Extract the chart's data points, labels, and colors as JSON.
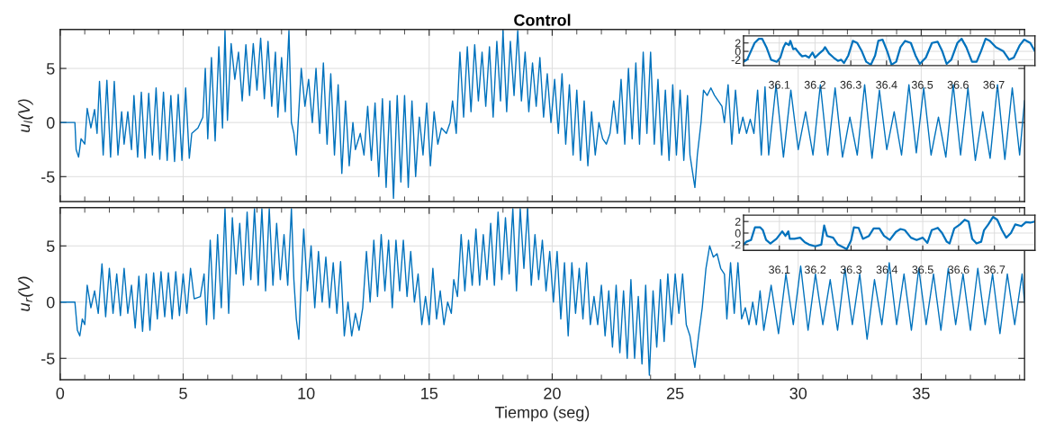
{
  "chart_data": [
    {
      "type": "line",
      "title": "Control",
      "ylabel": "u$_{l}$(V)",
      "grid": true,
      "tick_labels": "y",
      "xlim": [
        0,
        39.2
      ],
      "ylim": [
        -7.3,
        8.6
      ],
      "xticks": [
        0,
        5,
        10,
        15,
        20,
        25,
        30,
        35
      ],
      "yticks": [
        -5,
        0,
        5
      ],
      "series": [
        {
          "color": "#0072bd",
          "x": [
            0,
            0.6,
            0.65,
            0.75,
            0.85,
            1.0,
            1.1,
            1.25,
            1.4,
            1.5,
            1.6,
            1.75,
            1.9,
            2.05,
            2.2,
            2.35,
            2.5,
            2.6,
            2.75,
            2.9,
            3.0,
            3.15,
            3.3,
            3.45,
            3.6,
            3.75,
            3.9,
            4.05,
            4.2,
            4.35,
            4.5,
            4.65,
            4.8,
            4.95,
            5.1,
            5.25,
            5.35,
            5.6,
            5.8,
            5.9,
            6.0,
            6.15,
            6.3,
            6.45,
            6.6,
            6.7,
            6.8,
            6.95,
            7.1,
            7.25,
            7.4,
            7.55,
            7.7,
            7.85,
            8.0,
            8.15,
            8.3,
            8.45,
            8.6,
            8.75,
            8.85,
            9.0,
            9.15,
            9.3,
            9.4,
            9.5,
            9.6,
            9.7,
            9.8,
            9.95,
            10.1,
            10.25,
            10.4,
            10.55,
            10.7,
            10.85,
            11.0,
            11.15,
            11.3,
            11.45,
            11.6,
            11.75,
            11.9,
            12.0,
            12.2,
            12.35,
            12.5,
            12.65,
            12.8,
            12.95,
            13.1,
            13.25,
            13.4,
            13.55,
            13.7,
            13.85,
            14.0,
            14.15,
            14.3,
            14.45,
            14.6,
            14.75,
            14.9,
            15.05,
            15.2,
            15.35,
            15.5,
            15.7,
            15.85,
            15.95,
            16.1,
            16.25,
            16.4,
            16.55,
            16.7,
            16.85,
            17.0,
            17.15,
            17.3,
            17.45,
            17.6,
            17.75,
            17.9,
            18.0,
            18.15,
            18.3,
            18.45,
            18.6,
            18.75,
            18.9,
            19.05,
            19.2,
            19.35,
            19.5,
            19.65,
            19.8,
            19.95,
            20.1,
            20.25,
            20.4,
            20.55,
            20.7,
            20.85,
            21.0,
            21.15,
            21.3,
            21.45,
            21.6,
            21.75,
            21.9,
            22.05,
            22.2,
            22.35,
            22.5,
            22.65,
            22.8,
            22.95,
            23.1,
            23.25,
            23.4,
            23.55,
            23.7,
            23.85,
            24.0,
            24.15,
            24.3,
            24.45,
            24.6,
            24.75,
            24.9,
            25.05,
            25.2,
            25.35,
            25.5,
            25.6,
            25.7,
            25.8,
            25.9,
            26.05,
            26.15,
            26.3,
            26.45,
            26.6,
            26.75,
            26.9,
            27.0,
            27.15,
            27.3,
            27.45,
            27.6,
            27.75,
            27.9,
            28.05,
            28.2,
            28.35,
            28.5,
            28.65,
            28.8,
            29.1,
            29.4,
            29.7,
            30.0,
            30.3,
            30.6,
            30.9,
            31.2,
            31.5,
            31.8,
            32.1,
            32.4,
            32.7,
            33.0,
            33.3,
            33.6,
            33.9,
            34.2,
            34.5,
            34.8,
            35.1,
            35.4,
            35.7,
            36.0,
            36.3,
            36.6,
            36.9,
            37.2,
            37.5,
            37.8,
            38.1,
            38.4,
            38.7,
            39.0,
            39.2
          ],
          "values": [
            0,
            0,
            -2.5,
            -3.2,
            -1.5,
            -2,
            1.3,
            -0.5,
            1.2,
            -1,
            3.8,
            -3,
            3.9,
            -3.2,
            3.8,
            -3,
            1,
            -2,
            1,
            -2.5,
            2.5,
            -3.2,
            2.8,
            -3.3,
            2.7,
            -3,
            3.2,
            -3.4,
            2.8,
            -3.5,
            2.5,
            -3.6,
            2.6,
            -3.5,
            3.2,
            -3.3,
            -1,
            -0.5,
            0.5,
            5,
            -1.5,
            6,
            -1.7,
            7,
            -0.5,
            8.5,
            0.2,
            7.3,
            4,
            6.5,
            2,
            7.2,
            2.5,
            7.3,
            3,
            7.8,
            2.2,
            7.5,
            1.5,
            6.5,
            0.5,
            6,
            1,
            8.5,
            0,
            -1,
            -3,
            1,
            5,
            1.5,
            4,
            0,
            5,
            -1,
            5.5,
            -2,
            4.5,
            -3,
            3.5,
            -4.7,
            2,
            -4,
            0,
            -2.5,
            -1,
            -3,
            1.5,
            -3.5,
            1.8,
            -5,
            2.2,
            -6,
            2,
            -7,
            2.5,
            -5.5,
            2.5,
            -6,
            2,
            -5,
            0.5,
            -3,
            1.8,
            -4,
            1,
            -2,
            -0.5,
            -1,
            0,
            2,
            -1,
            6.5,
            0.5,
            7,
            1,
            7.2,
            2,
            6.5,
            1.5,
            7,
            0.5,
            7.5,
            2,
            8.5,
            1,
            7.5,
            2.5,
            8.5,
            2,
            6.5,
            1,
            5.5,
            1.5,
            6,
            0.5,
            4.5,
            0,
            4,
            -1,
            4.5,
            -2,
            3.5,
            -3,
            3,
            -3.5,
            2,
            -4,
            1,
            -3,
            0,
            -1.5,
            -2,
            -1,
            2,
            -1,
            4,
            -2,
            5,
            -1.5,
            5.5,
            -2,
            6.5,
            -1,
            6.5,
            -2,
            4,
            -3,
            3,
            -3.5,
            3.5,
            -3,
            3,
            -3.5,
            2.5,
            -3,
            -4.5,
            -6,
            -3,
            0,
            3,
            2.5,
            3.2,
            2.5,
            2,
            1.5,
            0,
            3.5,
            -2,
            3,
            -1,
            0.5,
            -1,
            0.3,
            -1,
            3,
            -3,
            3.3,
            -3,
            3.5,
            -3.2,
            3,
            -2.5,
            1,
            -3,
            3.5,
            -3,
            3.2,
            -3.2,
            0.5,
            -3,
            3.5,
            -3.3,
            3,
            -2.5,
            1,
            -3,
            3.5,
            -2.8,
            3.2,
            -3,
            0.5,
            -3.2,
            3.5,
            -3,
            3.2,
            -3.5,
            1,
            -3.3,
            3.5,
            -3.4,
            3.2,
            -3,
            2
          ]
        }
      ]
    },
    {
      "type": "line",
      "grid": true,
      "xlim": [
        36.0,
        36.815
      ],
      "ylim": [
        -3.4,
        3.7
      ],
      "xticks": [
        36.1,
        36.2,
        36.3,
        36.4,
        36.5,
        36.6,
        36.7
      ],
      "yticks": [
        -2,
        0,
        2
      ],
      "series": [
        {
          "color": "#0072bd",
          "x": [
            36.0,
            36.01,
            36.031,
            36.043,
            36.052,
            36.064,
            36.077,
            36.093,
            36.103,
            36.112,
            36.118,
            36.127,
            36.131,
            36.139,
            36.145,
            36.156,
            36.164,
            36.173,
            36.183,
            36.193,
            36.2,
            36.212,
            36.223,
            36.228,
            36.239,
            36.252,
            36.264,
            36.273,
            36.281,
            36.293,
            36.306,
            36.318,
            36.331,
            36.343,
            36.356,
            36.368,
            36.377,
            36.389,
            36.402,
            36.414,
            36.427,
            36.439,
            36.452,
            36.468,
            36.481,
            36.493,
            36.51,
            36.527,
            36.543,
            36.556,
            36.568,
            36.581,
            36.598,
            36.61,
            36.623,
            36.639,
            36.652,
            36.664,
            36.677,
            36.689,
            36.706,
            36.727,
            36.743,
            36.756,
            36.773,
            36.785,
            36.802,
            36.815
          ],
          "values": [
            -2.5,
            -2,
            2,
            3,
            3,
            1,
            -2,
            -2.5,
            -1.5,
            1,
            2,
            1.5,
            2.5,
            0.5,
            0.7,
            -0.5,
            -1.2,
            -1,
            -1.5,
            -0.3,
            -1.5,
            -0.5,
            0.3,
            1,
            -0.5,
            -1.5,
            -2.3,
            -2,
            -2.8,
            -1,
            2.5,
            2,
            0,
            -2.5,
            -3.2,
            -1,
            2.5,
            2.8,
            0,
            -3.2,
            -2.5,
            1,
            2.5,
            2,
            -1,
            -3,
            -1.5,
            2,
            2.3,
            0,
            -3,
            -2,
            2,
            3,
            1,
            -2.5,
            -2.5,
            0,
            3,
            2.5,
            1,
            0,
            -2,
            -1.5,
            1.5,
            2.8,
            2,
            0
          ]
        }
      ]
    },
    {
      "type": "line",
      "ylabel": "u$_{r}$(V)",
      "xlabel": "Tiempo (seg)",
      "grid": true,
      "xlim": [
        0,
        39.2
      ],
      "ylim": [
        -6.9,
        8.4
      ],
      "xticks": [
        0,
        5,
        10,
        15,
        20,
        25,
        30,
        35
      ],
      "yticks": [
        -5,
        0,
        5
      ],
      "series": [
        {
          "color": "#0072bd",
          "x": [
            0,
            0.6,
            0.7,
            0.8,
            0.9,
            1.0,
            1.1,
            1.25,
            1.4,
            1.55,
            1.7,
            1.85,
            2.0,
            2.15,
            2.3,
            2.45,
            2.6,
            2.75,
            2.9,
            3.05,
            3.2,
            3.35,
            3.5,
            3.65,
            3.8,
            3.95,
            4.1,
            4.25,
            4.4,
            4.55,
            4.7,
            4.85,
            5.0,
            5.15,
            5.3,
            5.45,
            5.7,
            5.85,
            5.95,
            6.1,
            6.25,
            6.4,
            6.55,
            6.7,
            6.85,
            7.0,
            7.15,
            7.3,
            7.45,
            7.6,
            7.75,
            7.9,
            8.05,
            8.2,
            8.35,
            8.5,
            8.65,
            8.8,
            8.95,
            9.1,
            9.25,
            9.4,
            9.5,
            9.6,
            9.7,
            9.8,
            9.9,
            10.05,
            10.2,
            10.35,
            10.5,
            10.65,
            10.8,
            10.95,
            11.1,
            11.25,
            11.4,
            11.55,
            11.7,
            11.85,
            12.0,
            12.15,
            12.3,
            12.45,
            12.6,
            12.75,
            12.9,
            13.05,
            13.2,
            13.35,
            13.5,
            13.65,
            13.8,
            13.95,
            14.1,
            14.25,
            14.4,
            14.55,
            14.7,
            14.85,
            15.0,
            15.15,
            15.3,
            15.45,
            15.6,
            15.75,
            15.9,
            16.0,
            16.15,
            16.3,
            16.45,
            16.6,
            16.75,
            16.9,
            17.05,
            17.2,
            17.35,
            17.5,
            17.65,
            17.8,
            17.95,
            18.1,
            18.25,
            18.4,
            18.55,
            18.7,
            18.85,
            19.0,
            19.15,
            19.3,
            19.45,
            19.6,
            19.75,
            19.9,
            20.05,
            20.2,
            20.35,
            20.5,
            20.65,
            20.8,
            20.95,
            21.1,
            21.25,
            21.4,
            21.55,
            21.7,
            21.85,
            22.0,
            22.15,
            22.3,
            22.45,
            22.6,
            22.75,
            22.9,
            23.05,
            23.2,
            23.35,
            23.5,
            23.65,
            23.8,
            23.95,
            24.1,
            24.25,
            24.4,
            24.55,
            24.7,
            24.85,
            25.0,
            25.15,
            25.3,
            25.45,
            25.6,
            25.7,
            25.8,
            25.95,
            26.1,
            26.25,
            26.4,
            26.55,
            26.7,
            26.85,
            27.0,
            27.1,
            27.25,
            27.4,
            27.55,
            27.7,
            27.85,
            28.0,
            28.15,
            28.3,
            28.45,
            28.6,
            28.9,
            29.2,
            29.5,
            29.8,
            30.1,
            30.4,
            30.7,
            31.0,
            31.3,
            31.6,
            31.9,
            32.2,
            32.5,
            32.8,
            33.1,
            33.4,
            33.7,
            34.0,
            34.3,
            34.6,
            34.9,
            35.2,
            35.5,
            35.8,
            36.1,
            36.4,
            36.7,
            37.0,
            37.3,
            37.6,
            37.9,
            38.2,
            38.5,
            38.8,
            39.1,
            39.2
          ],
          "values": [
            0,
            0,
            -2.5,
            -3,
            -1.5,
            -2,
            1.5,
            -0.5,
            1,
            -1,
            3.4,
            -1.3,
            3,
            -1,
            2.5,
            -1.2,
            3,
            -1,
            1.5,
            -2.3,
            2.3,
            -2.6,
            2.5,
            -2.5,
            2.6,
            -1.5,
            2.7,
            -1.3,
            2.6,
            -1.5,
            2.7,
            -1.2,
            2.5,
            -1,
            3,
            0.3,
            0.5,
            2.5,
            -2,
            5.5,
            -1.5,
            6,
            -0.5,
            8.3,
            -1,
            7.5,
            2.5,
            7,
            1.5,
            8,
            2,
            8.3,
            1.5,
            8.3,
            1,
            8.3,
            1.5,
            7,
            2,
            6,
            1.5,
            8.3,
            2,
            -1.5,
            -3.3,
            2,
            6.5,
            1,
            5,
            -0.5,
            4.5,
            0,
            4,
            -0.5,
            3.5,
            -1,
            3.6,
            -3,
            0,
            -3,
            -1,
            -2.5,
            -0.5,
            4.5,
            0,
            5.5,
            0.5,
            6,
            1,
            5.5,
            -0.5,
            5.5,
            1,
            5.5,
            0.5,
            4.5,
            0,
            2.5,
            -2,
            0.5,
            -2,
            3,
            -1.5,
            1,
            -2,
            0,
            -1,
            2,
            0.5,
            6,
            1,
            5.5,
            1.5,
            6.5,
            1.5,
            6,
            2,
            7,
            1.5,
            8,
            2,
            7.5,
            2.5,
            8.3,
            1,
            8.3,
            3,
            8.3,
            1.5,
            6,
            2,
            5.5,
            1,
            4.5,
            0,
            4.5,
            -1.5,
            3.5,
            -3,
            3.5,
            -1,
            3,
            -1.5,
            3.5,
            -2,
            0.5,
            -2,
            1.5,
            -3,
            1,
            -4,
            1.5,
            -4.5,
            1,
            -5,
            2,
            -5,
            0.5,
            -5.5,
            1.5,
            -6.5,
            1,
            -4,
            2,
            -3.5,
            2.5,
            -2,
            2.5,
            -1,
            2.5,
            -2,
            -3,
            -4.5,
            -5.8,
            -3,
            -0.5,
            3,
            5,
            4,
            4.3,
            3,
            2.5,
            -1.5,
            3.5,
            -1,
            3.5,
            -1.5,
            -0.5,
            -2,
            0,
            -2,
            1,
            -2.5,
            1.5,
            -2.8,
            2.5,
            -2,
            3.2,
            -2.5,
            2.5,
            -2,
            2,
            -2.5,
            3,
            -2,
            2.5,
            -3.3,
            2,
            -2,
            3.5,
            -2,
            2.5,
            -2.5,
            3,
            -2,
            2.5,
            -2.5,
            3,
            -2,
            2.5,
            -2.5,
            3,
            -2,
            2.5,
            -2.8,
            2.5,
            -2,
            2.5,
            0
          ]
        }
      ]
    },
    {
      "type": "line",
      "grid": true,
      "xlim": [
        36.0,
        36.813
      ],
      "ylim": [
        -3.0,
        3.1
      ],
      "xticks": [
        36.1,
        36.2,
        36.3,
        36.4,
        36.5,
        36.6,
        36.7
      ],
      "yticks": [
        -2,
        0,
        2
      ],
      "series": [
        {
          "color": "#0072bd",
          "x": [
            36.0,
            36.008,
            36.021,
            36.032,
            36.046,
            36.054,
            36.063,
            36.075,
            36.092,
            36.108,
            36.117,
            36.125,
            36.129,
            36.142,
            36.158,
            36.171,
            36.183,
            36.2,
            36.217,
            36.225,
            36.233,
            36.25,
            36.263,
            36.279,
            36.288,
            36.3,
            36.308,
            36.321,
            36.333,
            36.35,
            36.363,
            36.379,
            36.392,
            36.408,
            36.425,
            36.438,
            36.45,
            36.467,
            36.483,
            36.5,
            36.513,
            36.525,
            36.542,
            36.554,
            36.567,
            36.575,
            36.588,
            36.604,
            36.617,
            36.628,
            36.638,
            36.65,
            36.663,
            36.671,
            36.683,
            36.696,
            36.708,
            36.721,
            36.733,
            36.746,
            36.758,
            36.775,
            36.788,
            36.8,
            36.813
          ],
          "values": [
            -2,
            -1.5,
            -1.2,
            1,
            1,
            0.5,
            -1.2,
            -1.8,
            -1,
            0.3,
            -0.5,
            0.3,
            -1,
            -1,
            -0.8,
            -1.6,
            -2,
            -2.3,
            -2,
            1.3,
            -0.5,
            -0.8,
            -2,
            -2.5,
            -2.8,
            -1.3,
            1,
            0.9,
            -1,
            -0.5,
            0.8,
            0.8,
            -0.5,
            -1.2,
            0.2,
            0.7,
            0.5,
            -0.8,
            -1.2,
            -0.8,
            -1.7,
            0.5,
            0.9,
            0,
            -1.5,
            -1.8,
            0.8,
            1.5,
            2.3,
            2,
            -1,
            -1.8,
            -1.5,
            0.5,
            1.5,
            2.8,
            2.3,
            0.5,
            -0.8,
            0,
            1.5,
            1.2,
            1.9,
            1.8,
            2
          ]
        }
      ]
    }
  ]
}
